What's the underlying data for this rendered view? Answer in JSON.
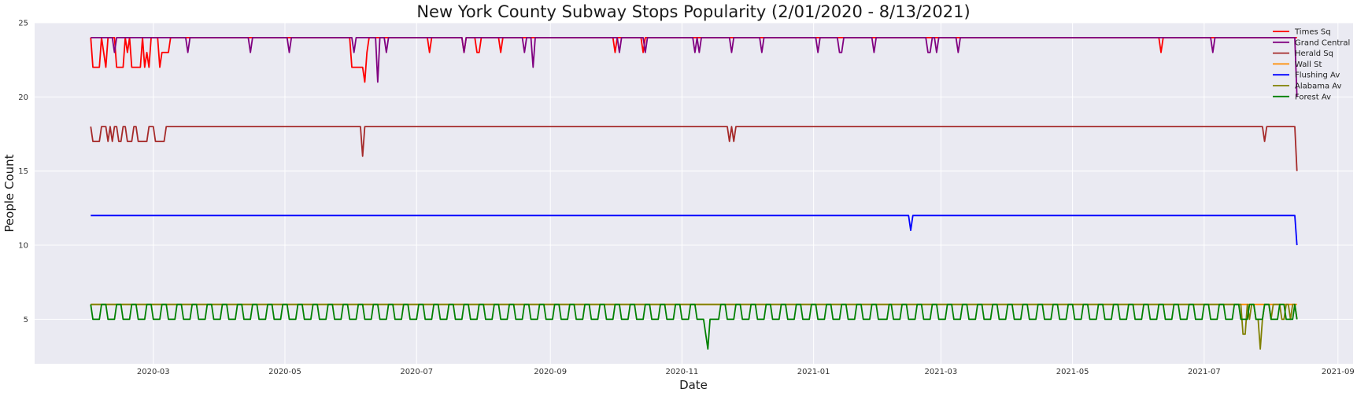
{
  "chart_data": {
    "type": "line",
    "title": "New York County Subway Stops Popularity (2/01/2020 - 8/13/2021)",
    "xlabel": "Date",
    "ylabel": "People Count",
    "x_range": [
      "2020-02-01",
      "2021-08-13"
    ],
    "xlim": [
      "2020-01-06",
      "2021-09-08"
    ],
    "ylim": [
      2,
      25
    ],
    "grid": true,
    "legend_position": "top-right",
    "x_ticks": [
      "2020-03",
      "2020-05",
      "2020-07",
      "2020-09",
      "2020-11",
      "2021-01",
      "2021-03",
      "2021-05",
      "2021-07",
      "2021-09"
    ],
    "y_ticks": [
      5,
      10,
      15,
      20,
      25
    ],
    "series": [
      {
        "name": "Times Sq",
        "color": "#ff0000",
        "base": 24,
        "end_value": 24,
        "dips": [
          [
            "2020-02-02",
            22
          ],
          [
            "2020-02-03",
            22
          ],
          [
            "2020-02-04",
            22
          ],
          [
            "2020-02-05",
            22
          ],
          [
            "2020-02-07",
            23
          ],
          [
            "2020-02-08",
            22
          ],
          [
            "2020-02-13",
            22
          ],
          [
            "2020-02-14",
            22
          ],
          [
            "2020-02-15",
            22
          ],
          [
            "2020-02-16",
            22
          ],
          [
            "2020-02-18",
            23
          ],
          [
            "2020-02-20",
            22
          ],
          [
            "2020-02-21",
            22
          ],
          [
            "2020-02-22",
            22
          ],
          [
            "2020-02-23",
            22
          ],
          [
            "2020-02-24",
            22
          ],
          [
            "2020-02-26",
            22
          ],
          [
            "2020-02-27",
            23
          ],
          [
            "2020-02-28",
            22
          ],
          [
            "2020-03-04",
            22
          ],
          [
            "2020-03-05",
            23
          ],
          [
            "2020-03-06",
            23
          ],
          [
            "2020-03-07",
            23
          ],
          [
            "2020-03-08",
            23
          ],
          [
            "2020-06-01",
            22
          ],
          [
            "2020-06-02",
            22
          ],
          [
            "2020-06-03",
            22
          ],
          [
            "2020-06-04",
            22
          ],
          [
            "2020-06-05",
            22
          ],
          [
            "2020-06-06",
            22
          ],
          [
            "2020-06-07",
            21
          ],
          [
            "2020-06-08",
            23
          ],
          [
            "2020-07-07",
            23
          ],
          [
            "2020-07-23",
            23
          ],
          [
            "2020-07-29",
            23
          ],
          [
            "2020-07-30",
            23
          ],
          [
            "2020-08-09",
            23
          ],
          [
            "2020-10-01",
            23
          ],
          [
            "2020-10-14",
            23
          ],
          [
            "2021-06-11",
            23
          ]
        ]
      },
      {
        "name": "Grand Central",
        "color": "#800080",
        "base": 24,
        "end_value": 20,
        "dips": [
          [
            "2020-02-12",
            23
          ],
          [
            "2020-03-17",
            23
          ],
          [
            "2020-04-15",
            23
          ],
          [
            "2020-05-03",
            23
          ],
          [
            "2020-06-02",
            23
          ],
          [
            "2020-06-13",
            21
          ],
          [
            "2020-06-17",
            23
          ],
          [
            "2020-07-23",
            23
          ],
          [
            "2020-08-20",
            23
          ],
          [
            "2020-08-24",
            22
          ],
          [
            "2020-10-03",
            23
          ],
          [
            "2020-10-15",
            23
          ],
          [
            "2020-11-07",
            23
          ],
          [
            "2020-11-09",
            23
          ],
          [
            "2020-11-24",
            23
          ],
          [
            "2020-12-08",
            23
          ],
          [
            "2021-01-03",
            23
          ],
          [
            "2021-01-13",
            23
          ],
          [
            "2021-01-14",
            23
          ],
          [
            "2021-01-29",
            23
          ],
          [
            "2021-02-23",
            23
          ],
          [
            "2021-02-24",
            23
          ],
          [
            "2021-02-27",
            23
          ],
          [
            "2021-03-09",
            23
          ],
          [
            "2021-07-05",
            23
          ]
        ]
      },
      {
        "name": "Herald Sq",
        "color": "#a52a2a",
        "base": 18,
        "end_value": 15,
        "dips": [
          [
            "2020-02-02",
            17
          ],
          [
            "2020-02-03",
            17
          ],
          [
            "2020-02-04",
            17
          ],
          [
            "2020-02-05",
            17
          ],
          [
            "2020-02-09",
            17
          ],
          [
            "2020-02-11",
            17
          ],
          [
            "2020-02-14",
            17
          ],
          [
            "2020-02-15",
            17
          ],
          [
            "2020-02-18",
            17
          ],
          [
            "2020-02-19",
            17
          ],
          [
            "2020-02-20",
            17
          ],
          [
            "2020-02-23",
            17
          ],
          [
            "2020-02-24",
            17
          ],
          [
            "2020-02-25",
            17
          ],
          [
            "2020-02-26",
            17
          ],
          [
            "2020-02-27",
            17
          ],
          [
            "2020-03-02",
            17
          ],
          [
            "2020-03-03",
            17
          ],
          [
            "2020-03-04",
            17
          ],
          [
            "2020-03-05",
            17
          ],
          [
            "2020-03-06",
            17
          ],
          [
            "2020-06-06",
            16
          ],
          [
            "2020-11-23",
            17
          ],
          [
            "2020-11-25",
            17
          ],
          [
            "2021-07-29",
            17
          ]
        ]
      },
      {
        "name": "Wall St",
        "color": "#ff8c00",
        "base": 6,
        "end_value": 6,
        "dips": []
      },
      {
        "name": "Flushing Av",
        "color": "#0000ff",
        "base": 12,
        "end_value": 10,
        "dips": [
          [
            "2021-02-15",
            11
          ]
        ]
      },
      {
        "name": "Alabama Av",
        "color": "#808000",
        "base": 6,
        "end_value": 5,
        "dips": [
          [
            "2021-07-19",
            4
          ],
          [
            "2021-07-20",
            4
          ],
          [
            "2021-07-22",
            5
          ],
          [
            "2021-07-25",
            5
          ],
          [
            "2021-07-26",
            5
          ],
          [
            "2021-07-27",
            3
          ],
          [
            "2021-07-28",
            5
          ],
          [
            "2021-08-01",
            5
          ],
          [
            "2021-08-06",
            5
          ],
          [
            "2021-08-07",
            5
          ],
          [
            "2021-08-10",
            5
          ]
        ]
      },
      {
        "name": "Forest Av",
        "color": "#008000",
        "base": 6,
        "end_value": 5,
        "weekly_dip": {
          "start": "2020-02-02",
          "weekdays_from_start": [
            0,
            1,
            2,
            3
          ],
          "value": 5,
          "every_days": 7
        },
        "dips": [
          [
            "2020-05-12",
            5
          ],
          [
            "2020-05-17",
            5
          ],
          [
            "2020-11-10",
            5
          ],
          [
            "2020-11-11",
            5
          ],
          [
            "2020-11-12",
            4
          ],
          [
            "2020-11-13",
            3
          ],
          [
            "2020-11-14",
            5
          ],
          [
            "2020-11-15",
            5
          ],
          [
            "2021-02-01",
            5
          ],
          [
            "2021-02-02",
            5
          ],
          [
            "2021-02-03",
            5
          ],
          [
            "2021-02-04",
            5
          ]
        ]
      }
    ]
  }
}
